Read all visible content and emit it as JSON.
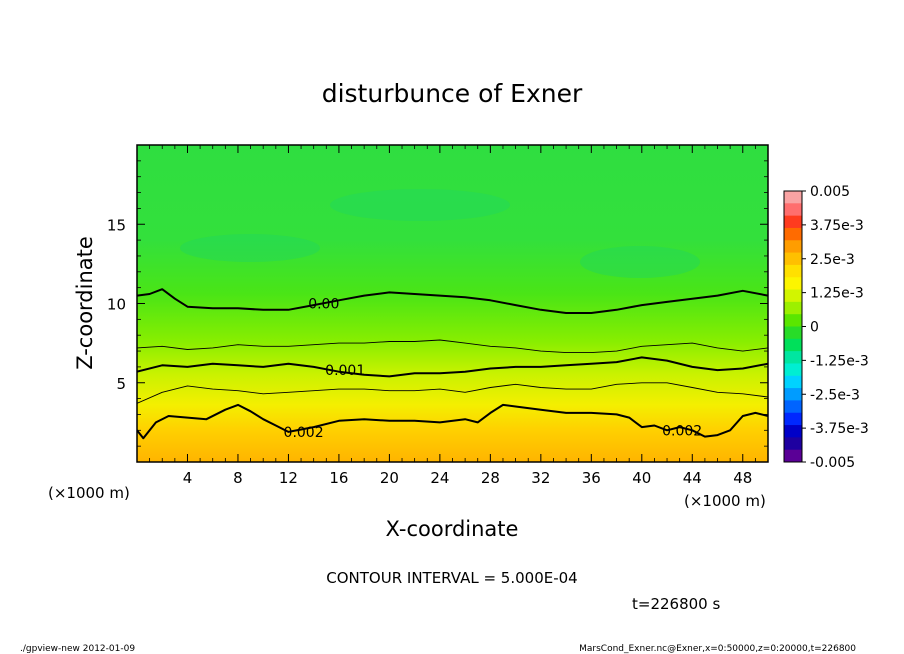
{
  "chart_data": {
    "type": "heatmap",
    "title": "disturbunce of Exner",
    "xlabel": "X-coordinate",
    "ylabel": "Z-coordinate",
    "x_units_left": "(×1000 m)",
    "x_units_right": "(×1000 m)",
    "xlim": [
      0,
      50
    ],
    "ylim": [
      0,
      20
    ],
    "x_ticks": [
      4,
      8,
      12,
      16,
      20,
      24,
      28,
      32,
      36,
      40,
      44,
      48
    ],
    "y_ticks": [
      5,
      10,
      15
    ],
    "contour_interval": "CONTOUR INTERVAL = 5.000E-04",
    "time_label": "t=226800 s",
    "colorbar": {
      "range": [
        -0.005,
        0.005
      ],
      "tick_labels": [
        "0.005",
        "3.75e-3",
        "2.5e-3",
        "1.25e-3",
        "0",
        "-1.25e-3",
        "-2.5e-3",
        "-3.75e-3",
        "-0.005"
      ],
      "colors": [
        "#f9a3a3",
        "#ff6e6e",
        "#ff3b1f",
        "#ff6b00",
        "#ff9d00",
        "#ffc000",
        "#ffe000",
        "#fcf500",
        "#d2f500",
        "#9cf000",
        "#5ae600",
        "#28dc28",
        "#00e05a",
        "#00e6a0",
        "#00eed2",
        "#00d2ff",
        "#009cff",
        "#0064ff",
        "#0028ff",
        "#0000c8",
        "#1e00a0",
        "#5a0096"
      ]
    },
    "contour_labels": [
      {
        "text": "0.00",
        "x": 14.8,
        "z": 10.0
      },
      {
        "text": "0.001",
        "x": 16.5,
        "z": 5.8
      },
      {
        "text": "0.002",
        "x": 13.2,
        "z": 1.9
      },
      {
        "text": "0.002",
        "x": 43.2,
        "z": 2.0
      }
    ],
    "contours": [
      {
        "level": 0.0,
        "bold": true,
        "points": [
          [
            0,
            10.5
          ],
          [
            1,
            10.6
          ],
          [
            2,
            10.9
          ],
          [
            3,
            10.3
          ],
          [
            4,
            9.8
          ],
          [
            6,
            9.7
          ],
          [
            8,
            9.7
          ],
          [
            10,
            9.6
          ],
          [
            12,
            9.6
          ],
          [
            14,
            9.9
          ],
          [
            16,
            10.2
          ],
          [
            18,
            10.5
          ],
          [
            20,
            10.7
          ],
          [
            22,
            10.6
          ],
          [
            24,
            10.5
          ],
          [
            26,
            10.4
          ],
          [
            28,
            10.2
          ],
          [
            30,
            9.9
          ],
          [
            32,
            9.6
          ],
          [
            34,
            9.4
          ],
          [
            36,
            9.4
          ],
          [
            38,
            9.6
          ],
          [
            40,
            9.9
          ],
          [
            42,
            10.1
          ],
          [
            44,
            10.3
          ],
          [
            46,
            10.5
          ],
          [
            48,
            10.8
          ],
          [
            50,
            10.5
          ]
        ]
      },
      {
        "level": 0.0005,
        "bold": false,
        "points": [
          [
            0,
            7.2
          ],
          [
            2,
            7.3
          ],
          [
            4,
            7.1
          ],
          [
            6,
            7.2
          ],
          [
            8,
            7.4
          ],
          [
            10,
            7.3
          ],
          [
            12,
            7.3
          ],
          [
            14,
            7.4
          ],
          [
            16,
            7.5
          ],
          [
            18,
            7.5
          ],
          [
            20,
            7.6
          ],
          [
            22,
            7.6
          ],
          [
            24,
            7.7
          ],
          [
            26,
            7.5
          ],
          [
            28,
            7.3
          ],
          [
            30,
            7.2
          ],
          [
            32,
            7.0
          ],
          [
            34,
            6.9
          ],
          [
            36,
            6.9
          ],
          [
            38,
            7.0
          ],
          [
            40,
            7.3
          ],
          [
            42,
            7.4
          ],
          [
            44,
            7.5
          ],
          [
            46,
            7.2
          ],
          [
            48,
            7.0
          ],
          [
            50,
            7.2
          ]
        ]
      },
      {
        "level": 0.001,
        "bold": true,
        "points": [
          [
            0,
            5.7
          ],
          [
            2,
            6.1
          ],
          [
            4,
            6.0
          ],
          [
            6,
            6.2
          ],
          [
            8,
            6.1
          ],
          [
            10,
            6.0
          ],
          [
            12,
            6.2
          ],
          [
            14,
            6.0
          ],
          [
            16,
            5.7
          ],
          [
            18,
            5.5
          ],
          [
            20,
            5.4
          ],
          [
            22,
            5.6
          ],
          [
            24,
            5.6
          ],
          [
            26,
            5.7
          ],
          [
            28,
            5.9
          ],
          [
            30,
            6.0
          ],
          [
            32,
            6.0
          ],
          [
            34,
            6.1
          ],
          [
            36,
            6.2
          ],
          [
            38,
            6.3
          ],
          [
            40,
            6.6
          ],
          [
            42,
            6.4
          ],
          [
            44,
            6.0
          ],
          [
            46,
            5.8
          ],
          [
            48,
            5.9
          ],
          [
            50,
            6.2
          ]
        ]
      },
      {
        "level": 0.0015,
        "bold": false,
        "points": [
          [
            0,
            3.7
          ],
          [
            2,
            4.4
          ],
          [
            4,
            4.8
          ],
          [
            6,
            4.6
          ],
          [
            8,
            4.5
          ],
          [
            10,
            4.3
          ],
          [
            12,
            4.4
          ],
          [
            14,
            4.5
          ],
          [
            16,
            4.6
          ],
          [
            18,
            4.6
          ],
          [
            20,
            4.5
          ],
          [
            22,
            4.5
          ],
          [
            24,
            4.6
          ],
          [
            26,
            4.4
          ],
          [
            28,
            4.7
          ],
          [
            30,
            4.9
          ],
          [
            32,
            4.7
          ],
          [
            34,
            4.6
          ],
          [
            36,
            4.6
          ],
          [
            38,
            4.9
          ],
          [
            40,
            5.0
          ],
          [
            42,
            5.0
          ],
          [
            44,
            4.7
          ],
          [
            46,
            4.4
          ],
          [
            48,
            4.3
          ],
          [
            50,
            4.1
          ]
        ]
      },
      {
        "level": 0.002,
        "bold": true,
        "points": [
          [
            0,
            2.0
          ],
          [
            0.5,
            1.5
          ],
          [
            1.5,
            2.5
          ],
          [
            2.5,
            2.9
          ],
          [
            4,
            2.8
          ],
          [
            5.5,
            2.7
          ],
          [
            7,
            3.3
          ],
          [
            8,
            3.6
          ],
          [
            9,
            3.2
          ],
          [
            10,
            2.7
          ],
          [
            11,
            2.3
          ],
          [
            12,
            1.9
          ],
          [
            14,
            2.2
          ],
          [
            16,
            2.6
          ],
          [
            18,
            2.7
          ],
          [
            20,
            2.6
          ],
          [
            22,
            2.6
          ],
          [
            24,
            2.5
          ],
          [
            26,
            2.7
          ],
          [
            27,
            2.5
          ],
          [
            28,
            3.1
          ],
          [
            29,
            3.6
          ],
          [
            30,
            3.5
          ],
          [
            32,
            3.3
          ],
          [
            34,
            3.1
          ],
          [
            36,
            3.1
          ],
          [
            38,
            3.0
          ],
          [
            39,
            2.8
          ],
          [
            40,
            2.2
          ],
          [
            41,
            2.3
          ],
          [
            42,
            2.0
          ],
          [
            43,
            2.2
          ],
          [
            44,
            2.0
          ],
          [
            45,
            1.6
          ],
          [
            46,
            1.7
          ],
          [
            47,
            2.0
          ],
          [
            48,
            2.9
          ],
          [
            49,
            3.1
          ],
          [
            50,
            2.9
          ]
        ]
      }
    ]
  },
  "footer": {
    "left": "./gpview-new   2012-01-09",
    "right": "MarsCond_Exner.nc@Exner,x=0:50000,z=0:20000,t=226800"
  }
}
